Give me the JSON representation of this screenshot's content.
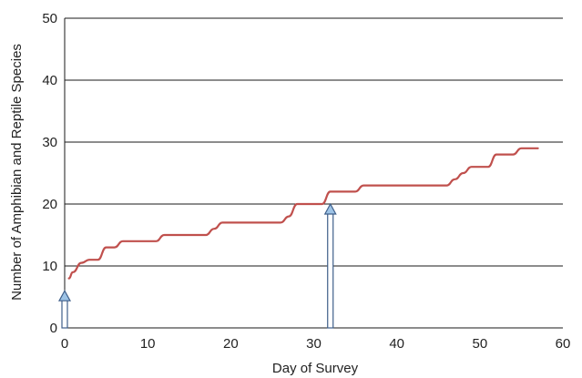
{
  "chart_data": {
    "type": "line",
    "xlabel": "Day of Survey",
    "ylabel": "Number of Amphibian and Reptile Species",
    "xlim": [
      0,
      60
    ],
    "ylim": [
      0,
      50
    ],
    "x_ticks": [
      0,
      10,
      20,
      30,
      40,
      50,
      60
    ],
    "y_ticks": [
      0,
      10,
      20,
      30,
      40,
      50
    ],
    "grid": "horizontal",
    "series": [
      {
        "color": "#c0504d",
        "x": [
          0.5,
          1,
          2,
          3,
          4,
          5,
          6,
          7,
          8,
          9,
          10,
          11,
          12,
          13,
          14,
          15,
          16,
          17,
          18,
          19,
          20,
          21,
          22,
          23,
          24,
          25,
          26,
          27,
          28,
          29,
          30,
          31,
          32,
          33,
          34,
          35,
          36,
          37,
          38,
          39,
          40,
          41,
          42,
          43,
          44,
          45,
          46,
          47,
          48,
          49,
          50,
          51,
          52,
          53,
          54,
          55,
          56,
          57
        ],
        "y": [
          8,
          9,
          10.5,
          11,
          11,
          13,
          13,
          14,
          14,
          14,
          14,
          14,
          15,
          15,
          15,
          15,
          15,
          15,
          16,
          17,
          17,
          17,
          17,
          17,
          17,
          17,
          17,
          18,
          20,
          20,
          20,
          20,
          22,
          22,
          22,
          22,
          23,
          23,
          23,
          23,
          23,
          23,
          23,
          23,
          23,
          23,
          23,
          24,
          25,
          26,
          26,
          26,
          28,
          28,
          28,
          29,
          29,
          29
        ]
      }
    ],
    "markers": [
      {
        "x": 0,
        "y": 6
      },
      {
        "x": 32,
        "y": 20
      }
    ],
    "marker_color": "#9dc3e6"
  }
}
